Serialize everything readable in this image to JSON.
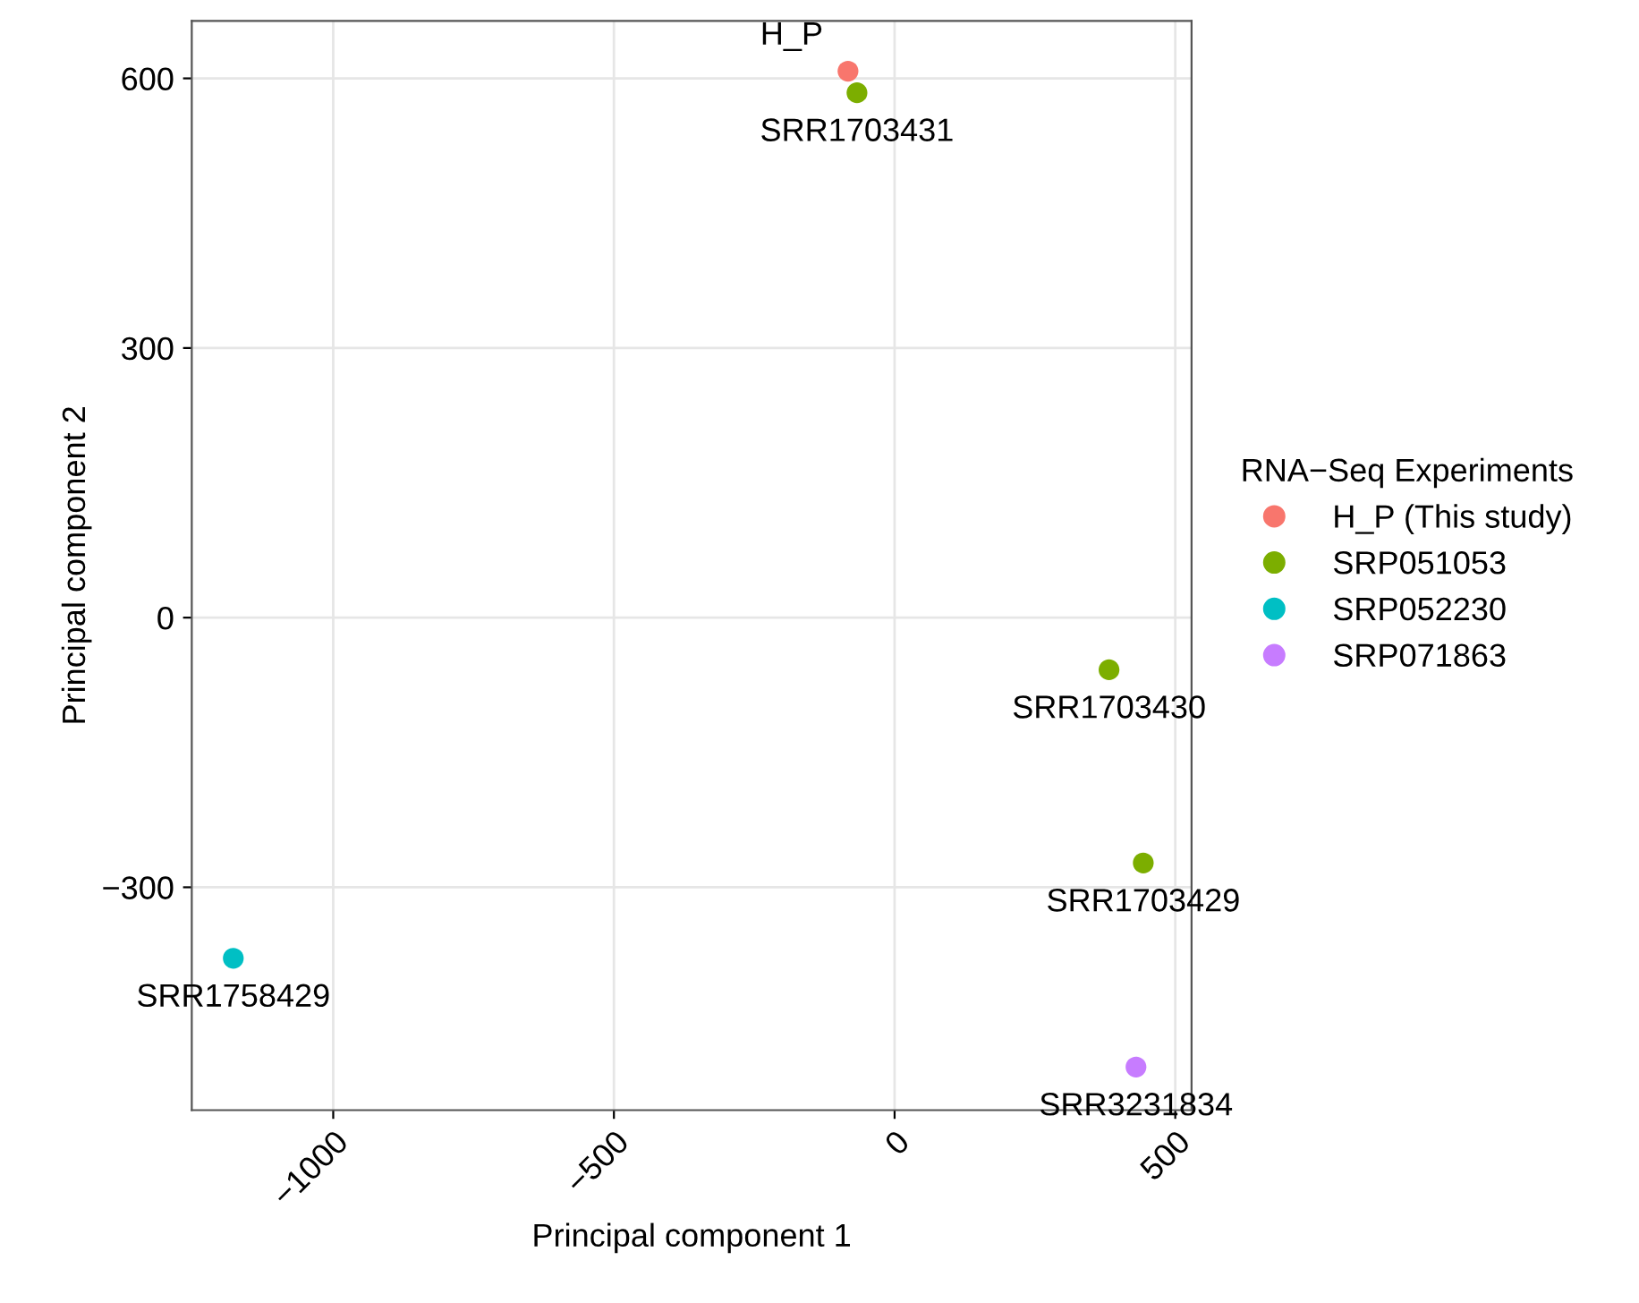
{
  "chart_data": {
    "type": "scatter",
    "xlabel": "Principal component 1",
    "ylabel": "Principal component 2",
    "legend_title": "RNA−Seq Experiments",
    "series": [
      {
        "name": "H_P (This study)",
        "color": "#f8766d",
        "x": [
          -83
        ],
        "values": [
          608
        ]
      },
      {
        "name": "SRP051053",
        "color": "#7cae00",
        "x": [
          -67,
          382,
          443
        ],
        "values": [
          584,
          -58,
          -273
        ]
      },
      {
        "name": "SRP052230",
        "color": "#00bfc4",
        "x": [
          -1178
        ],
        "values": [
          -379
        ]
      },
      {
        "name": "SRP071863",
        "color": "#c77cff",
        "x": [
          430
        ],
        "values": [
          -500
        ]
      }
    ],
    "annotations": [
      {
        "text": "H_P",
        "x": -83,
        "y": 608
      },
      {
        "text": "SRR1703431",
        "x": -67,
        "y": 584
      },
      {
        "text": "SRR1703430",
        "x": 382,
        "y": -58
      },
      {
        "text": "SRR1703429",
        "x": 443,
        "y": -273
      },
      {
        "text": "SRR1758429",
        "x": -1178,
        "y": -379
      },
      {
        "text": "SRR3231834",
        "x": 430,
        "y": -500
      }
    ],
    "xlim": [
      -1252,
      529
    ],
    "ylim": [
      -548,
      664
    ],
    "xticks": [
      {
        "value": -1000,
        "label": "−1000"
      },
      {
        "value": -500,
        "label": "−500"
      },
      0,
      500
    ],
    "yticks": [
      {
        "value": -300,
        "label": "−300"
      },
      0,
      300,
      600
    ],
    "grid": true,
    "legend": "right",
    "marker": "circle"
  }
}
